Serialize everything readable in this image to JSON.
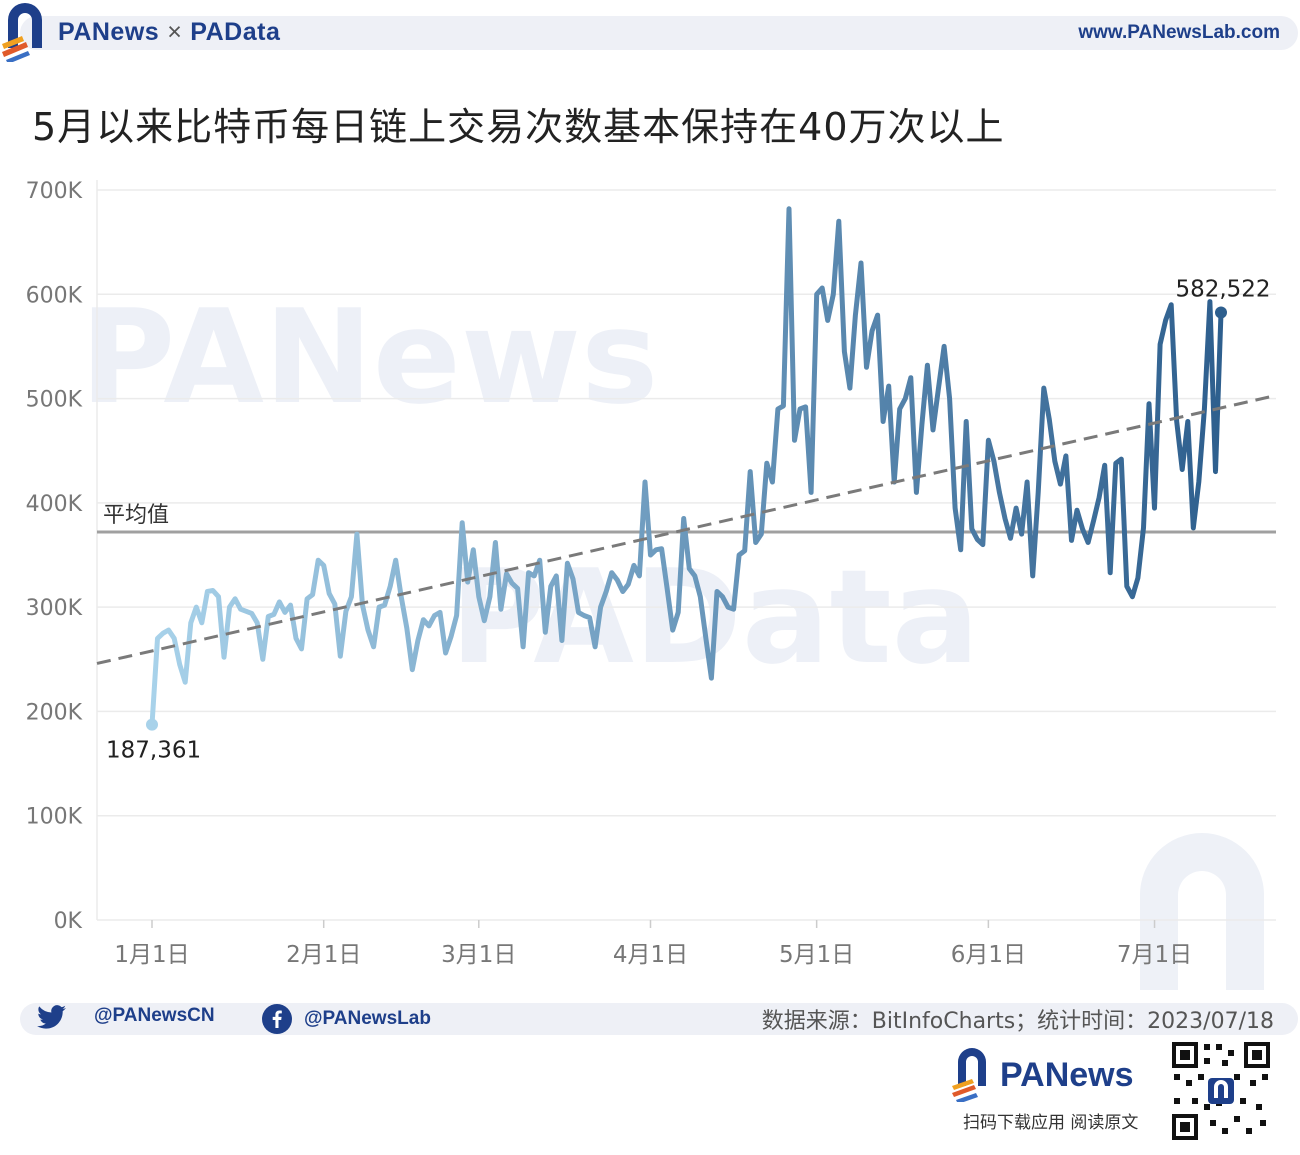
{
  "header": {
    "brand_left": "PANews",
    "brand_sep": "×",
    "brand_right": "PAData",
    "website": "www.PANewsLab.com"
  },
  "title": "5月以来比特币每日链上交易次数基本保持在40万次以上",
  "footer": {
    "twitter": "@PANewsCN",
    "facebook": "@PANewsLab",
    "source": "数据来源：BitInfoCharts；统计时间：2023/07/18",
    "bottom_brand": "PANews",
    "bottom_caption": "扫码下载应用  阅读原文"
  },
  "colors": {
    "brand": "#1e3f8a",
    "line_start": "#a8d2ea",
    "line_end": "#2e5f8e",
    "average": "#a0a0a0",
    "trend": "#7a7a7a"
  },
  "chart_data": {
    "type": "line",
    "title": "5月以来比特币每日链上交易次数基本保持在40万次以上",
    "xlabel": "",
    "ylabel": "",
    "ylim": [
      0,
      700000
    ],
    "yticks": [
      0,
      100000,
      200000,
      300000,
      400000,
      500000,
      600000,
      700000
    ],
    "ytick_labels": [
      "0K",
      "100K",
      "200K",
      "300K",
      "400K",
      "500K",
      "600K",
      "700K"
    ],
    "x_range": [
      "2023-01-01",
      "2023-07-18"
    ],
    "xtick_labels": [
      "1月1日",
      "2月1日",
      "3月1日",
      "4月1日",
      "5月1日",
      "6月1日",
      "7月1日"
    ],
    "xtick_days": [
      0,
      31,
      59,
      90,
      120,
      151,
      181
    ],
    "grid": true,
    "series": [
      {
        "values": [
          187361,
          270000,
          275000,
          278000,
          270000,
          245000,
          228000,
          285000,
          300000,
          285000,
          315000,
          316000,
          310000,
          252000,
          300000,
          308000,
          298000,
          296000,
          294000,
          285000,
          250000,
          291000,
          293000,
          305000,
          295000,
          302000,
          270000,
          260000,
          308000,
          312000,
          345000,
          340000,
          313000,
          303000,
          253000,
          296000,
          310000,
          370000,
          302000,
          278000,
          262000,
          300000,
          302000,
          320000,
          345000,
          310000,
          280000,
          240000,
          268000,
          288000,
          282000,
          292000,
          295000,
          256000,
          272000,
          292000,
          381000,
          324000,
          355000,
          310000,
          287000,
          310000,
          362000,
          298000,
          332000,
          323000,
          318000,
          262000,
          333000,
          330000,
          345000,
          276000,
          320000,
          330000,
          268000,
          342000,
          327000,
          295000,
          292000,
          290000,
          262000,
          300000,
          315000,
          333000,
          326000,
          315000,
          322000,
          340000,
          330000,
          420000,
          350000,
          355000,
          356000,
          318000,
          278000,
          295000,
          385000,
          337000,
          330000,
          310000,
          270000,
          232000,
          315000,
          310000,
          300000,
          298000,
          350000,
          354000,
          430000,
          362000,
          370000,
          438000,
          420000,
          490000,
          493000,
          682000,
          460000,
          490000,
          492000,
          410000,
          600000,
          606000,
          575000,
          600000,
          670000,
          545000,
          510000,
          580000,
          630000,
          530000,
          565000,
          580000,
          478000,
          512000,
          420000,
          490000,
          500000,
          520000,
          410000,
          475000,
          532000,
          470000,
          510000,
          550000,
          500000,
          395000,
          355000,
          478000,
          375000,
          365000,
          360000,
          460000,
          440000,
          410000,
          385000,
          366000,
          395000,
          370000,
          420000,
          330000,
          410000,
          510000,
          480000,
          440000,
          418000,
          445000,
          364000,
          393000,
          375000,
          362000,
          383000,
          405000,
          436000,
          333000,
          438000,
          442000,
          320000,
          310000,
          328000,
          376000,
          495000,
          395000,
          552000,
          575000,
          590000,
          478000,
          432000,
          478000,
          376000,
          420000,
          490000,
          593000,
          430000,
          582522
        ]
      }
    ],
    "annotations": {
      "start_label": "187,361",
      "end_label": "582,522",
      "average_value": 372000,
      "average_label": "平均值",
      "trendline": {
        "start": 246000,
        "end": 503000
      }
    }
  }
}
